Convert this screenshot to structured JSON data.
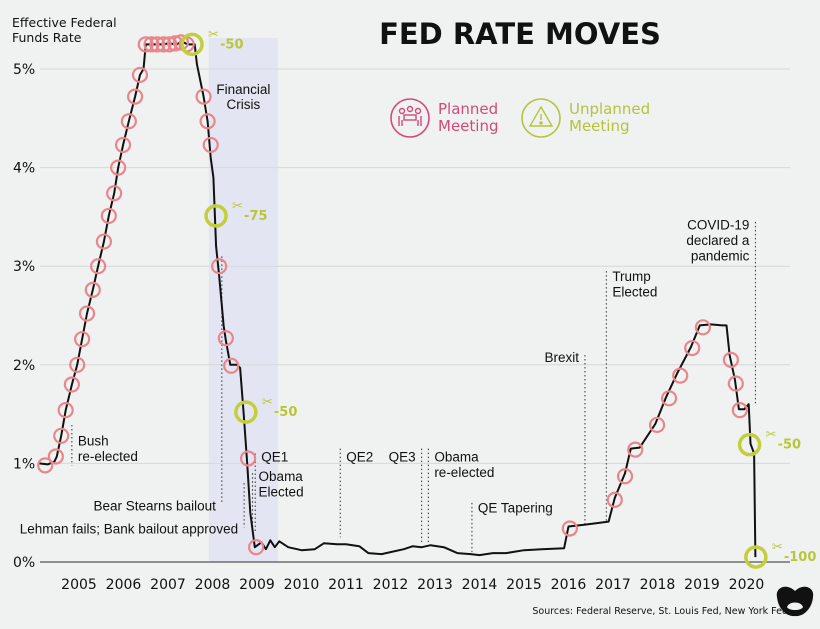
{
  "chart_data": {
    "type": "line",
    "title": "FED RATE MOVES",
    "ylabel": "Effective Federal Funds Rate",
    "xlabel": "",
    "ylim": [
      0,
      5.3
    ],
    "xlim": [
      2004.1,
      2020.4
    ],
    "y_ticks": [
      0,
      1,
      2,
      3,
      4,
      5
    ],
    "y_tick_labels": [
      "0%",
      "1%",
      "2%",
      "3%",
      "4%",
      "5%"
    ],
    "x_ticks": [
      2005,
      2006,
      2007,
      2008,
      2009,
      2010,
      2011,
      2012,
      2013,
      2014,
      2015,
      2016,
      2017,
      2018,
      2019,
      2020
    ],
    "x_tick_labels": [
      "2005",
      "2006",
      "2007",
      "2008",
      "2009",
      "2010",
      "2011",
      "2012",
      "2013",
      "2014",
      "2015",
      "2016",
      "2017",
      "2018",
      "2019",
      "2020"
    ],
    "grid": true,
    "colors": {
      "line": "#111111",
      "planned": "#e8868c",
      "unplanned": "#c3cf3a",
      "crisis_band": "#e3e6f2",
      "grid": "#d6d8d8"
    },
    "series": [
      {
        "points": [
          [
            2004.1,
            1.0
          ],
          [
            2004.3,
            0.99
          ],
          [
            2004.45,
            1.02
          ],
          [
            2004.5,
            1.07
          ],
          [
            2004.6,
            1.28
          ],
          [
            2004.7,
            1.54
          ],
          [
            2004.84,
            1.8
          ],
          [
            2004.96,
            2.0
          ],
          [
            2005.07,
            2.26
          ],
          [
            2005.18,
            2.52
          ],
          [
            2005.31,
            2.76
          ],
          [
            2005.43,
            3.0
          ],
          [
            2005.56,
            3.25
          ],
          [
            2005.67,
            3.51
          ],
          [
            2005.79,
            3.74
          ],
          [
            2005.88,
            4.0
          ],
          [
            2005.99,
            4.23
          ],
          [
            2006.12,
            4.47
          ],
          [
            2006.26,
            4.72
          ],
          [
            2006.37,
            4.94
          ],
          [
            2006.45,
            5.0
          ],
          [
            2006.5,
            5.25
          ],
          [
            2006.9,
            5.25
          ],
          [
            2007.0,
            5.26
          ],
          [
            2007.2,
            5.25
          ],
          [
            2007.3,
            5.28
          ],
          [
            2007.45,
            5.25
          ],
          [
            2007.6,
            5.25
          ],
          [
            2007.65,
            5.05
          ],
          [
            2007.8,
            4.72
          ],
          [
            2007.89,
            4.47
          ],
          [
            2007.96,
            4.1
          ],
          [
            2008.02,
            3.9
          ],
          [
            2008.08,
            3.2
          ],
          [
            2008.15,
            2.9
          ],
          [
            2008.25,
            2.4
          ],
          [
            2008.3,
            2.25
          ],
          [
            2008.4,
            2.0
          ],
          [
            2008.55,
            2.0
          ],
          [
            2008.62,
            1.97
          ],
          [
            2008.7,
            1.5
          ],
          [
            2008.78,
            1.0
          ],
          [
            2008.85,
            0.5
          ],
          [
            2008.95,
            0.15
          ],
          [
            2009.1,
            0.2
          ],
          [
            2009.2,
            0.13
          ],
          [
            2009.3,
            0.22
          ],
          [
            2009.4,
            0.15
          ],
          [
            2009.5,
            0.21
          ],
          [
            2009.7,
            0.15
          ],
          [
            2010.0,
            0.12
          ],
          [
            2010.3,
            0.13
          ],
          [
            2010.5,
            0.19
          ],
          [
            2010.8,
            0.18
          ],
          [
            2011.0,
            0.18
          ],
          [
            2011.3,
            0.16
          ],
          [
            2011.5,
            0.09
          ],
          [
            2011.8,
            0.08
          ],
          [
            2012.0,
            0.1
          ],
          [
            2012.3,
            0.13
          ],
          [
            2012.5,
            0.16
          ],
          [
            2012.7,
            0.15
          ],
          [
            2012.9,
            0.17
          ],
          [
            2013.2,
            0.15
          ],
          [
            2013.5,
            0.09
          ],
          [
            2013.8,
            0.08
          ],
          [
            2014.0,
            0.07
          ],
          [
            2014.3,
            0.09
          ],
          [
            2014.6,
            0.09
          ],
          [
            2015.0,
            0.12
          ],
          [
            2015.4,
            0.13
          ],
          [
            2015.9,
            0.14
          ],
          [
            2016.0,
            0.36
          ],
          [
            2016.4,
            0.38
          ],
          [
            2016.9,
            0.41
          ],
          [
            2017.04,
            0.65
          ],
          [
            2017.27,
            0.9
          ],
          [
            2017.4,
            1.15
          ],
          [
            2017.6,
            1.16
          ],
          [
            2017.95,
            1.4
          ],
          [
            2018.2,
            1.68
          ],
          [
            2018.45,
            1.92
          ],
          [
            2018.75,
            2.18
          ],
          [
            2018.95,
            2.4
          ],
          [
            2019.2,
            2.41
          ],
          [
            2019.45,
            2.4
          ],
          [
            2019.55,
            2.4
          ],
          [
            2019.62,
            2.1
          ],
          [
            2019.74,
            1.85
          ],
          [
            2019.83,
            1.55
          ],
          [
            2019.95,
            1.55
          ],
          [
            2020.05,
            1.6
          ],
          [
            2020.09,
            1.2
          ],
          [
            2020.17,
            1.1
          ],
          [
            2020.2,
            0.05
          ]
        ]
      }
    ],
    "planned_meetings": [
      [
        2004.24,
        0.98
      ],
      [
        2004.48,
        1.07
      ],
      [
        2004.6,
        1.28
      ],
      [
        2004.7,
        1.54
      ],
      [
        2004.84,
        1.8
      ],
      [
        2004.96,
        2.0
      ],
      [
        2005.07,
        2.26
      ],
      [
        2005.18,
        2.52
      ],
      [
        2005.31,
        2.76
      ],
      [
        2005.43,
        3.0
      ],
      [
        2005.56,
        3.25
      ],
      [
        2005.67,
        3.51
      ],
      [
        2005.79,
        3.74
      ],
      [
        2005.88,
        4.0
      ],
      [
        2005.99,
        4.23
      ],
      [
        2006.12,
        4.47
      ],
      [
        2006.26,
        4.72
      ],
      [
        2006.37,
        4.94
      ],
      [
        2006.5,
        5.25
      ],
      [
        2006.63,
        5.25
      ],
      [
        2006.76,
        5.25
      ],
      [
        2006.9,
        5.25
      ],
      [
        2007.03,
        5.25
      ],
      [
        2007.16,
        5.26
      ],
      [
        2007.29,
        5.27
      ],
      [
        2007.42,
        5.25
      ],
      [
        2007.8,
        4.72
      ],
      [
        2007.89,
        4.47
      ],
      [
        2007.96,
        4.23
      ],
      [
        2008.15,
        3.0
      ],
      [
        2008.3,
        2.27
      ],
      [
        2008.42,
        1.99
      ],
      [
        2008.8,
        1.05
      ],
      [
        2008.98,
        0.15
      ],
      [
        2016.03,
        0.34
      ],
      [
        2017.04,
        0.63
      ],
      [
        2017.27,
        0.87
      ],
      [
        2017.5,
        1.14
      ],
      [
        2017.99,
        1.39
      ],
      [
        2018.26,
        1.66
      ],
      [
        2018.51,
        1.89
      ],
      [
        2018.78,
        2.17
      ],
      [
        2019.02,
        2.38
      ],
      [
        2019.65,
        2.05
      ],
      [
        2019.76,
        1.81
      ],
      [
        2019.85,
        1.54
      ]
    ],
    "unplanned_meetings": [
      {
        "x": 2007.54,
        "y": 5.25,
        "label": "-50"
      },
      {
        "x": 2008.08,
        "y": 3.51,
        "label": "-75"
      },
      {
        "x": 2008.75,
        "y": 1.52,
        "label": "-50"
      },
      {
        "x": 2020.07,
        "y": 1.19,
        "label": "-50"
      },
      {
        "x": 2020.21,
        "y": 0.05,
        "label": "-100"
      }
    ],
    "shaded_periods": [
      {
        "from": 2007.92,
        "to": 2009.47,
        "label": [
          "Financial",
          "Crisis"
        ]
      }
    ],
    "annotations": [
      {
        "x": 2004.84,
        "y_top": 1.39,
        "y_bottom": 0.98,
        "text_y": 1.18,
        "side": "right",
        "lines": [
          "Bush",
          "re-elected"
        ]
      },
      {
        "x": 2008.21,
        "y_top": 3.1,
        "y_bottom": 0.6,
        "text_y": 0.52,
        "side": "left",
        "lines": [
          "Bear Stearns bailout"
        ]
      },
      {
        "x": 2008.71,
        "y_top": 0.8,
        "y_bottom": 0.35,
        "text_y": 0.29,
        "side": "left",
        "lines": [
          "Lehman fails; Bank bailout approved"
        ]
      },
      {
        "x": 2008.96,
        "y_top": 1.1,
        "y_bottom": 0.3,
        "text_y": 1.02,
        "side": "right",
        "lines": [
          "QE1"
        ]
      },
      {
        "x": 2008.9,
        "y_top": 0.9,
        "y_bottom": 0.3,
        "text_y": 0.82,
        "side": "right",
        "lines": [
          "Obama",
          "Elected"
        ]
      },
      {
        "x": 2010.87,
        "y_top": 1.15,
        "y_bottom": 0.25,
        "text_y": 1.02,
        "side": "right",
        "lines": [
          "QE2"
        ]
      },
      {
        "x": 2012.7,
        "y_top": 1.15,
        "y_bottom": 0.2,
        "text_y": 1.02,
        "side": "left",
        "lines": [
          "QE3"
        ]
      },
      {
        "x": 2012.85,
        "y_top": 1.15,
        "y_bottom": 0.2,
        "text_y": 1.02,
        "side": "right",
        "lines": [
          "Obama",
          "re-elected"
        ]
      },
      {
        "x": 2013.83,
        "y_top": 0.6,
        "y_bottom": 0.1,
        "text_y": 0.5,
        "side": "right",
        "lines": [
          "QE Tapering"
        ]
      },
      {
        "x": 2016.37,
        "y_top": 2.1,
        "y_bottom": 0.38,
        "text_y": 2.03,
        "side": "left",
        "lines": [
          "Brexit"
        ]
      },
      {
        "x": 2016.85,
        "y_top": 2.95,
        "y_bottom": 0.42,
        "text_y": 2.85,
        "side": "right",
        "lines": [
          "Trump",
          "Elected"
        ]
      },
      {
        "x": 2020.2,
        "y_top": 3.45,
        "y_bottom": 1.6,
        "text_y": 3.37,
        "side": "left",
        "lines": [
          "COVID-19",
          "declared a",
          "pandemic"
        ]
      }
    ],
    "legend": {
      "placement": "top-center",
      "entries": [
        {
          "label": [
            "Planned",
            "Meeting"
          ],
          "icon": "people-at-table-icon",
          "color": "#d24a7c"
        },
        {
          "label": [
            "Unplanned",
            "Meeting"
          ],
          "icon": "warning-triangle-icon",
          "color": "#b5c43b"
        }
      ]
    }
  },
  "footer": {
    "sources": "Sources: Federal Reserve, St. Louis Fed, New York Fed",
    "logo": "Visual Capitalist"
  }
}
